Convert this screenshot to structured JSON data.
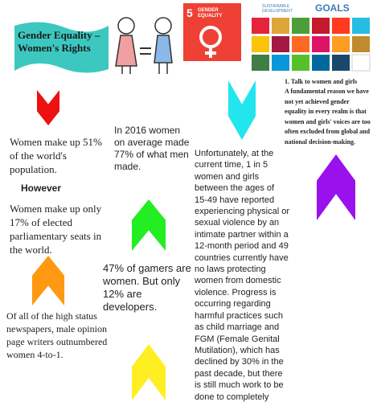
{
  "header": {
    "title": "Gender Equality – Women's Rights"
  },
  "sdg_icon": {
    "number": "5",
    "label": "GENDER EQUALITY"
  },
  "sdg_poster": {
    "label": "SUSTAINABLE DEVELOPMENT",
    "goals": "GOALS"
  },
  "column_left": {
    "fact_1": "Women make up 51% of the world's population.",
    "however": "However",
    "fact_2": "Women make up only 17% of elected parliamentary seats in the world.",
    "fact_3": "Of all of the high status newspapers, male opinion page writers outnumbered women 4-to-1."
  },
  "column_middle": {
    "fact_1": "In 2016 women on average made 77% of what men made.",
    "fact_2": "47% of gamers are women. But only 12% are developers."
  },
  "column_right": {
    "fact_1": "Unfortunately, at the current time, 1 in 5 women and girls between the ages of 15-49 have reported experiencing physical or sexual violence by an intimate partner within a 12-month period and 49 countries currently have no laws protecting women from domestic violence. Progress is occurring regarding harmful practices such as child marriage and FGM (Female Genital Mutilation), which has declined by 30% in the past decade, but there is still much work to be done to completely eliminate such practices"
  },
  "action": {
    "heading": "1. Talk to women and girls",
    "body": "A fundamental reason we have not yet achieved gender equality in every realm is that women and girls' voices are too often excluded from global and national decision-making."
  }
}
